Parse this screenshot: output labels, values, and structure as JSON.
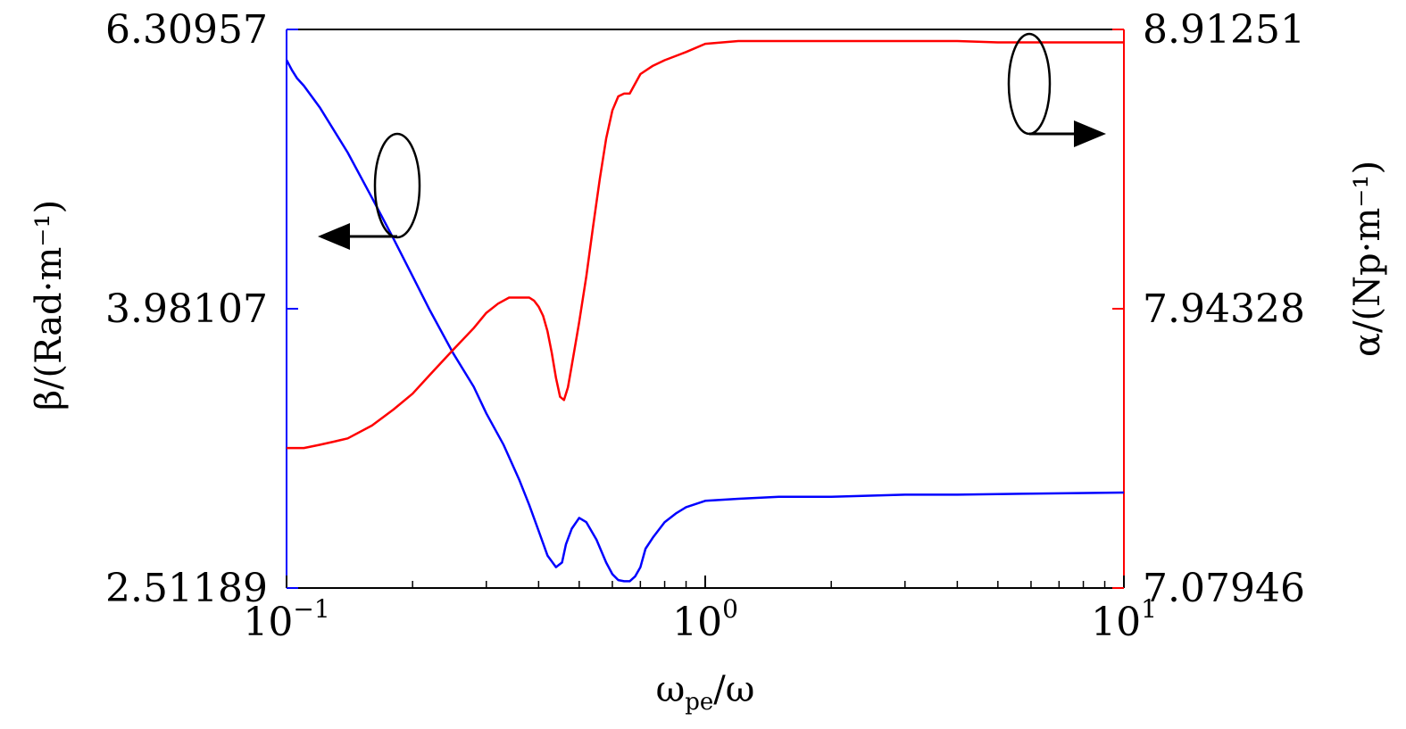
{
  "chart_data": {
    "type": "line",
    "x_scale": "log",
    "xlim": [
      0.1,
      10
    ],
    "x_ticks": [
      {
        "value": 0.1,
        "base": "10",
        "exp": "−1"
      },
      {
        "value": 1,
        "base": "10",
        "exp": "0"
      },
      {
        "value": 10,
        "base": "10",
        "exp": "1"
      }
    ],
    "xlabel": {
      "main": "ω",
      "sub": "pe",
      "rest": "/ω"
    },
    "left_axis": {
      "label": "β/(Rad·m⁻¹)",
      "scale": "log",
      "ylim": [
        2.51189,
        6.30957
      ],
      "ticks": [
        {
          "value": 2.51189,
          "label": "2.51189"
        },
        {
          "value": 3.98107,
          "label": "3.98107"
        },
        {
          "value": 6.30957,
          "label": "6.30957"
        }
      ],
      "color": "#0000ff"
    },
    "right_axis": {
      "label": "α/(Np·m⁻¹)",
      "scale": "log",
      "ylim": [
        7.07946,
        8.91251
      ],
      "ticks": [
        {
          "value": 7.07946,
          "label": "7.07946"
        },
        {
          "value": 7.94328,
          "label": "7.94328"
        },
        {
          "value": 8.91251,
          "label": "8.91251"
        }
      ],
      "color": "#ff0000"
    },
    "series": [
      {
        "axis": "left",
        "color": "#0000ff",
        "x": [
          0.1,
          0.103,
          0.106,
          0.11,
          0.12,
          0.14,
          0.16,
          0.18,
          0.2,
          0.22,
          0.25,
          0.28,
          0.3,
          0.33,
          0.36,
          0.38,
          0.4,
          0.42,
          0.44,
          0.455,
          0.465,
          0.48,
          0.5,
          0.52,
          0.55,
          0.58,
          0.6,
          0.62,
          0.64,
          0.66,
          0.68,
          0.7,
          0.72,
          0.75,
          0.8,
          0.85,
          0.9,
          1.0,
          1.2,
          1.5,
          2.0,
          3.0,
          4.0,
          6.0,
          10.0
        ],
        "y": [
          6.0,
          5.9,
          5.82,
          5.75,
          5.55,
          5.15,
          4.78,
          4.47,
          4.2,
          3.97,
          3.7,
          3.5,
          3.35,
          3.18,
          3.0,
          2.88,
          2.76,
          2.65,
          2.6,
          2.62,
          2.7,
          2.77,
          2.82,
          2.8,
          2.72,
          2.62,
          2.57,
          2.545,
          2.54,
          2.54,
          2.56,
          2.6,
          2.68,
          2.73,
          2.8,
          2.84,
          2.87,
          2.9,
          2.91,
          2.92,
          2.92,
          2.93,
          2.93,
          2.935,
          2.94
        ]
      },
      {
        "axis": "right",
        "color": "#ff0000",
        "x": [
          0.1,
          0.11,
          0.12,
          0.13,
          0.14,
          0.16,
          0.18,
          0.2,
          0.22,
          0.25,
          0.28,
          0.3,
          0.32,
          0.34,
          0.36,
          0.38,
          0.39,
          0.4,
          0.41,
          0.42,
          0.43,
          0.44,
          0.45,
          0.46,
          0.47,
          0.48,
          0.49,
          0.5,
          0.52,
          0.54,
          0.56,
          0.58,
          0.6,
          0.62,
          0.64,
          0.66,
          0.7,
          0.75,
          0.8,
          0.9,
          1.0,
          1.2,
          1.5,
          2.0,
          3.0,
          4.0,
          5.0,
          7.0,
          10.0
        ],
        "y": [
          7.5,
          7.5,
          7.51,
          7.52,
          7.53,
          7.57,
          7.62,
          7.67,
          7.73,
          7.81,
          7.88,
          7.93,
          7.96,
          7.98,
          7.98,
          7.98,
          7.97,
          7.95,
          7.92,
          7.87,
          7.8,
          7.72,
          7.66,
          7.65,
          7.69,
          7.76,
          7.83,
          7.9,
          8.05,
          8.22,
          8.38,
          8.52,
          8.62,
          8.67,
          8.68,
          8.68,
          8.75,
          8.78,
          8.8,
          8.83,
          8.86,
          8.87,
          8.87,
          8.87,
          8.87,
          8.87,
          8.865,
          8.865,
          8.865
        ]
      }
    ],
    "annotations": [
      {
        "kind": "ellipse-arrow",
        "points_to": "left"
      },
      {
        "kind": "ellipse-arrow",
        "points_to": "right"
      }
    ]
  }
}
